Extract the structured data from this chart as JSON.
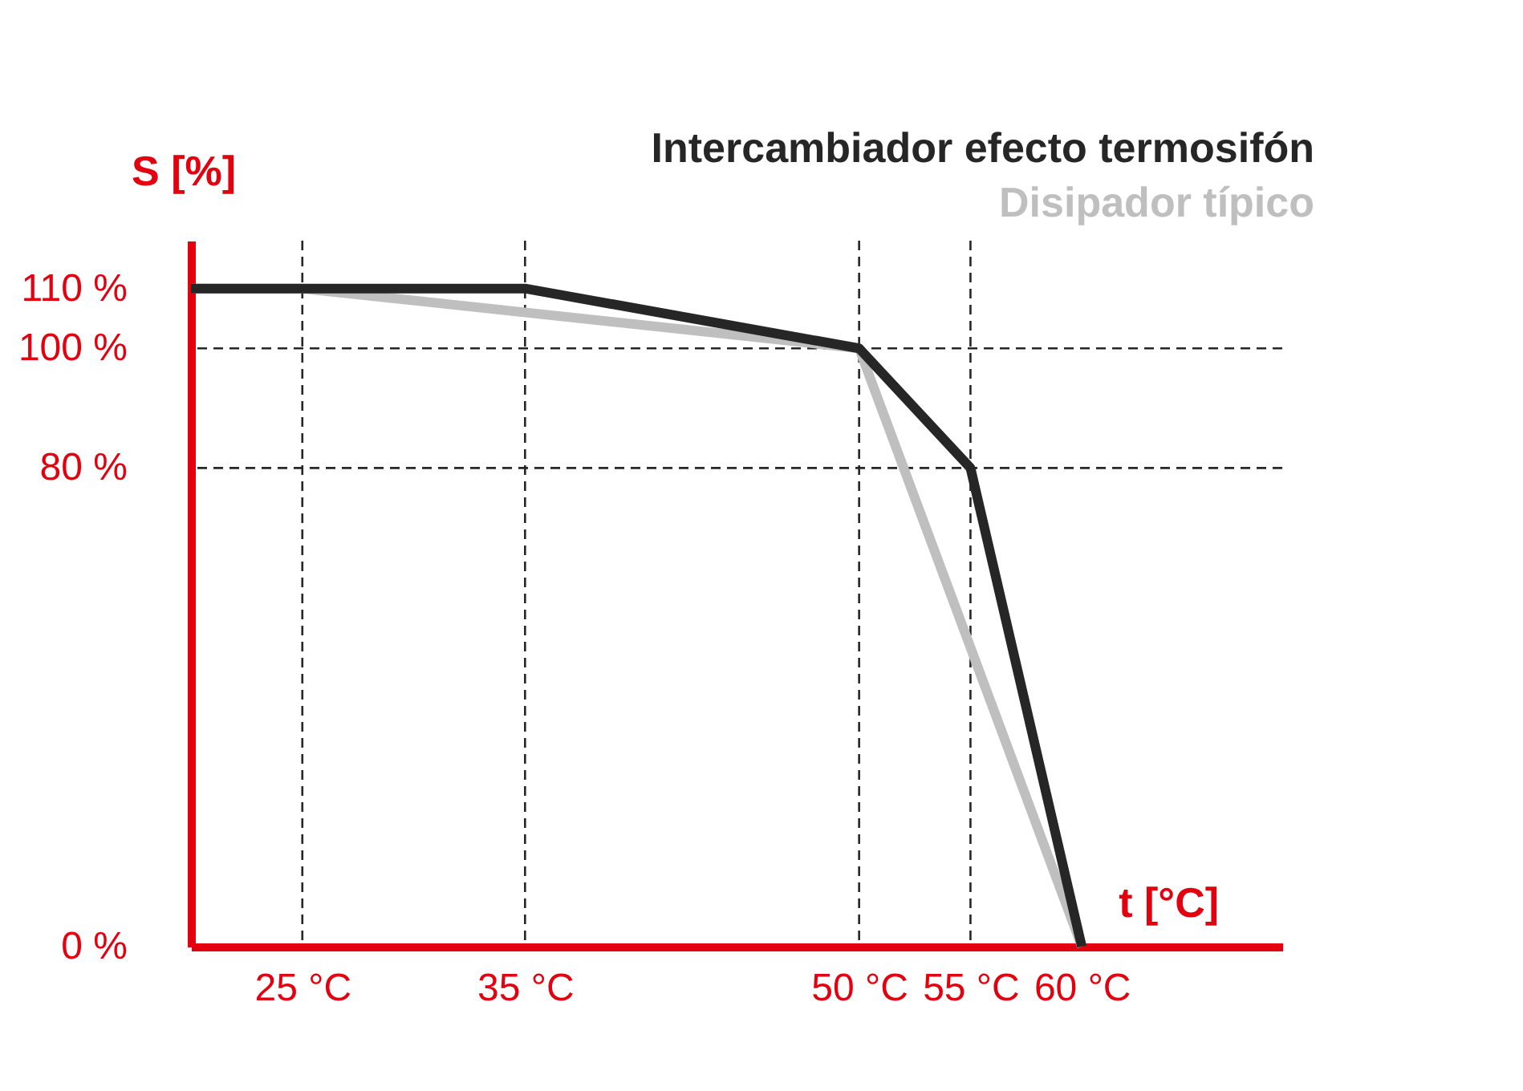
{
  "chart_data": {
    "type": "line",
    "xlabel": "t [°C]",
    "ylabel": "S [%]",
    "series": [
      {
        "name": "Intercambiador efecto termosifón",
        "color": "#262626",
        "x": [
          20,
          35,
          50,
          55,
          60
        ],
        "values": [
          110,
          110,
          100,
          80,
          0
        ]
      },
      {
        "name": "Disipador típico",
        "color": "#bfbfbf",
        "x": [
          20,
          25,
          50,
          60
        ],
        "values": [
          110,
          110,
          100,
          0
        ]
      }
    ],
    "xlim": [
      20,
      69
    ],
    "ylim": [
      0,
      118
    ],
    "xticks": [
      {
        "value": 25,
        "label": "25 °C"
      },
      {
        "value": 35,
        "label": "35 °C"
      },
      {
        "value": 50,
        "label": "50 °C"
      },
      {
        "value": 55,
        "label": "55 °C"
      },
      {
        "value": 60,
        "label": "60 °C"
      }
    ],
    "yticks": [
      {
        "value": 0,
        "label": "0 %"
      },
      {
        "value": 80,
        "label": "80 %"
      },
      {
        "value": 100,
        "label": "100 %"
      },
      {
        "value": 110,
        "label": "110 %"
      }
    ],
    "ref_lines": [
      {
        "axis": "x",
        "value": 25,
        "line_style": "dashed",
        "color": "#262626"
      },
      {
        "axis": "x",
        "value": 35,
        "line_style": "dashed",
        "color": "#262626"
      },
      {
        "axis": "x",
        "value": 50,
        "line_style": "dashed",
        "color": "#262626"
      },
      {
        "axis": "x",
        "value": 55,
        "line_style": "dashed",
        "color": "#262626"
      },
      {
        "axis": "y",
        "value": 100,
        "line_style": "dashed",
        "color": "#262626"
      },
      {
        "axis": "y",
        "value": 80,
        "line_style": "dashed",
        "color": "#262626"
      }
    ],
    "grid": false,
    "legend": "top right",
    "marker": "none",
    "line_style": "solid"
  }
}
